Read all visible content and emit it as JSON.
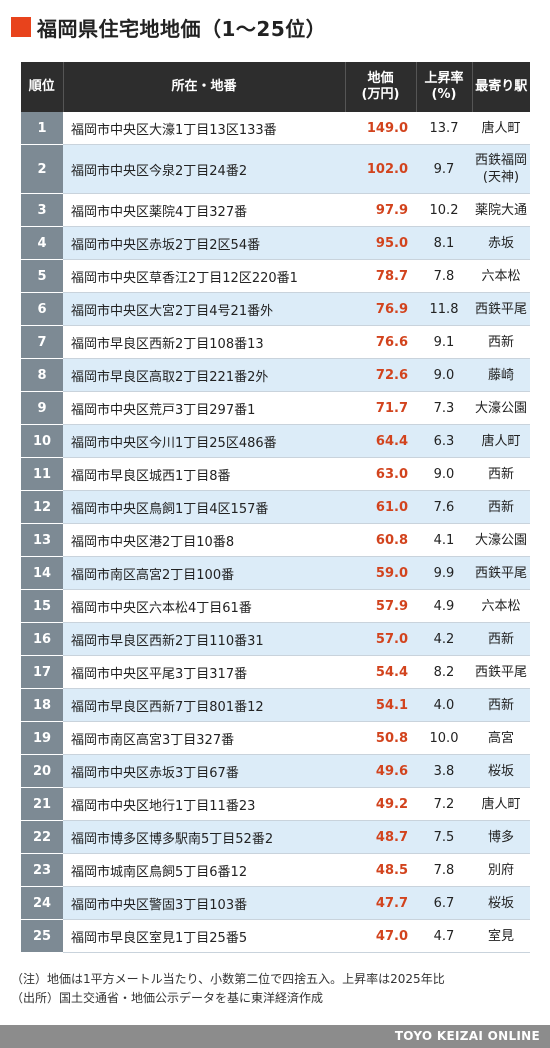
{
  "title": "福岡県住宅地地価（1〜25位）",
  "accent_color": "#e8431c",
  "price_color": "#d2431d",
  "headers": {
    "rank": "順位",
    "address": "所在・地番",
    "price": "地価\n(万円)",
    "rate": "上昇率\n(%)",
    "station": "最寄り駅"
  },
  "rows": [
    {
      "rank": "1",
      "address": "福岡市中央区大濠1丁目13区133番",
      "price": "149.0",
      "rate": "13.7",
      "station": "唐人町"
    },
    {
      "rank": "2",
      "address": "福岡市中央区今泉2丁目24番2",
      "price": "102.0",
      "rate": "9.7",
      "station": "西鉄福岡\n(天神)"
    },
    {
      "rank": "3",
      "address": "福岡市中央区薬院4丁目327番",
      "price": "97.9",
      "rate": "10.2",
      "station": "薬院大通"
    },
    {
      "rank": "4",
      "address": "福岡市中央区赤坂2丁目2区54番",
      "price": "95.0",
      "rate": "8.1",
      "station": "赤坂"
    },
    {
      "rank": "5",
      "address": "福岡市中央区草香江2丁目12区220番1",
      "price": "78.7",
      "rate": "7.8",
      "station": "六本松"
    },
    {
      "rank": "6",
      "address": "福岡市中央区大宮2丁目4号21番外",
      "price": "76.9",
      "rate": "11.8",
      "station": "西鉄平尾"
    },
    {
      "rank": "7",
      "address": "福岡市早良区西新2丁目108番13",
      "price": "76.6",
      "rate": "9.1",
      "station": "西新"
    },
    {
      "rank": "8",
      "address": "福岡市早良区高取2丁目221番2外",
      "price": "72.6",
      "rate": "9.0",
      "station": "藤崎"
    },
    {
      "rank": "9",
      "address": "福岡市中央区荒戸3丁目297番1",
      "price": "71.7",
      "rate": "7.3",
      "station": "大濠公園"
    },
    {
      "rank": "10",
      "address": "福岡市中央区今川1丁目25区486番",
      "price": "64.4",
      "rate": "6.3",
      "station": "唐人町"
    },
    {
      "rank": "11",
      "address": "福岡市早良区城西1丁目8番",
      "price": "63.0",
      "rate": "9.0",
      "station": "西新"
    },
    {
      "rank": "12",
      "address": "福岡市中央区鳥飼1丁目4区157番",
      "price": "61.0",
      "rate": "7.6",
      "station": "西新"
    },
    {
      "rank": "13",
      "address": "福岡市中央区港2丁目10番8",
      "price": "60.8",
      "rate": "4.1",
      "station": "大濠公園"
    },
    {
      "rank": "14",
      "address": "福岡市南区高宮2丁目100番",
      "price": "59.0",
      "rate": "9.9",
      "station": "西鉄平尾"
    },
    {
      "rank": "15",
      "address": "福岡市中央区六本松4丁目61番",
      "price": "57.9",
      "rate": "4.9",
      "station": "六本松"
    },
    {
      "rank": "16",
      "address": "福岡市早良区西新2丁目110番31",
      "price": "57.0",
      "rate": "4.2",
      "station": "西新"
    },
    {
      "rank": "17",
      "address": "福岡市中央区平尾3丁目317番",
      "price": "54.4",
      "rate": "8.2",
      "station": "西鉄平尾"
    },
    {
      "rank": "18",
      "address": "福岡市早良区西新7丁目801番12",
      "price": "54.1",
      "rate": "4.0",
      "station": "西新"
    },
    {
      "rank": "19",
      "address": "福岡市南区高宮3丁目327番",
      "price": "50.8",
      "rate": "10.0",
      "station": "高宮"
    },
    {
      "rank": "20",
      "address": "福岡市中央区赤坂3丁目67番",
      "price": "49.6",
      "rate": "3.8",
      "station": "桜坂"
    },
    {
      "rank": "21",
      "address": "福岡市中央区地行1丁目11番23",
      "price": "49.2",
      "rate": "7.2",
      "station": "唐人町"
    },
    {
      "rank": "22",
      "address": "福岡市博多区博多駅南5丁目52番2",
      "price": "48.7",
      "rate": "7.5",
      "station": "博多"
    },
    {
      "rank": "23",
      "address": "福岡市城南区鳥飼5丁目6番12",
      "price": "48.5",
      "rate": "7.8",
      "station": "別府"
    },
    {
      "rank": "24",
      "address": "福岡市中央区警固3丁目103番",
      "price": "47.7",
      "rate": "6.7",
      "station": "桜坂"
    },
    {
      "rank": "25",
      "address": "福岡市早良区室見1丁目25番5",
      "price": "47.0",
      "rate": "4.7",
      "station": "室見"
    }
  ],
  "notes": [
    "（注）地価は1平方メートル当たり、小数第二位で四捨五入。上昇率は2025年比",
    "（出所）国土交通省・地価公示データを基に東洋経済作成"
  ],
  "footer": "TOYO KEIZAI ONLINE"
}
